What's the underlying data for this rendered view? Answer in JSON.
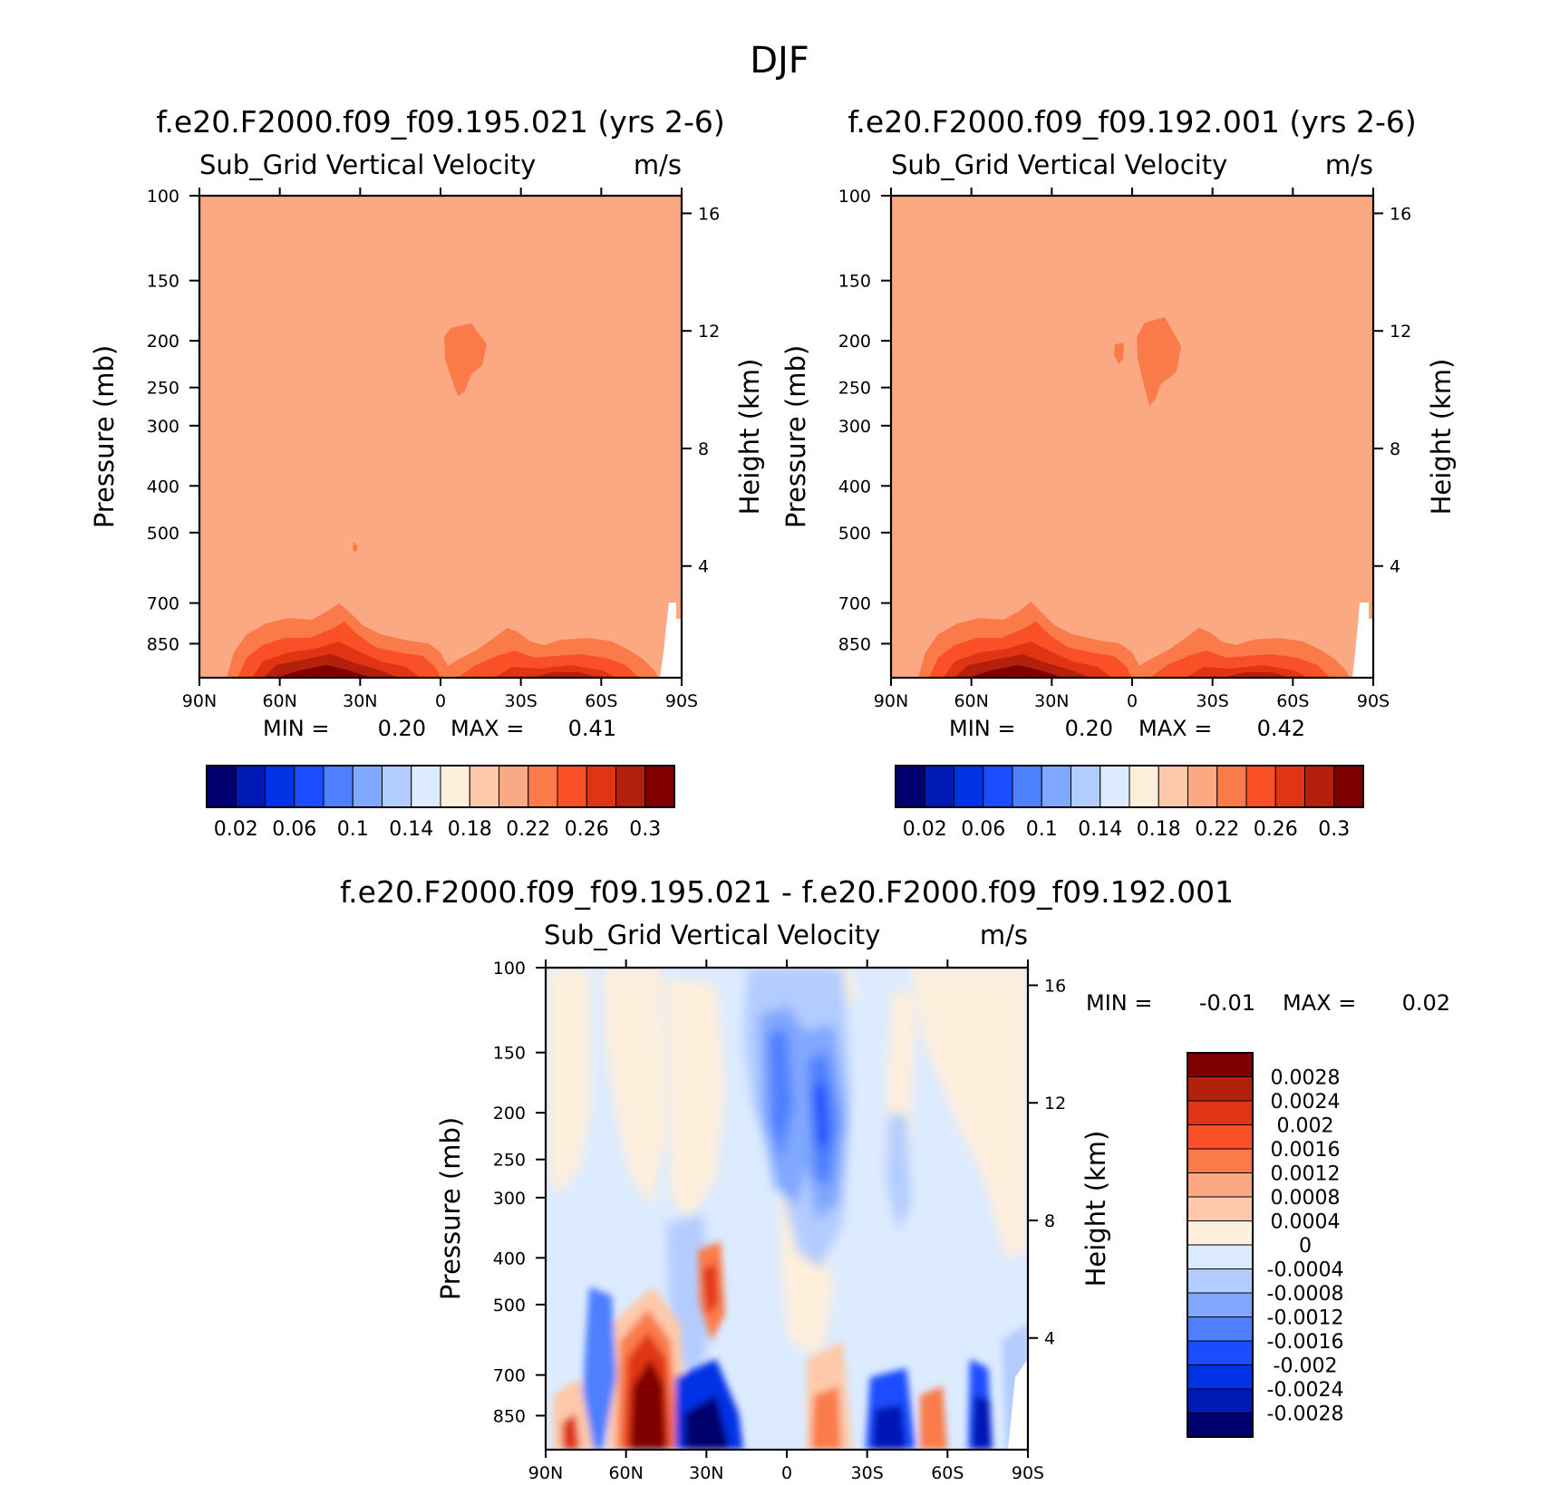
{
  "figure_title": "DJF",
  "chart_data": [
    {
      "type": "heatmap",
      "title": "f.e20.F2000.f09_f09.195.021 (yrs 2-6)",
      "subtitle": "Sub_Grid Vertical Velocity",
      "units": "m/s",
      "xlabel": "",
      "ylabel": "Pressure (mb)",
      "y2label": "Height (km)",
      "x_ticks": [
        "90N",
        "60N",
        "30N",
        "0",
        "30S",
        "60S",
        "90S"
      ],
      "y_ticks": [
        100,
        150,
        200,
        250,
        300,
        400,
        500,
        700,
        850
      ],
      "y_scale": "log",
      "y_range": [
        1000,
        100
      ],
      "y2_ticks": [
        16,
        12,
        8,
        4
      ],
      "min_label": "MIN =",
      "min": "0.20",
      "max_label": "MAX =",
      "max": "0.41",
      "background_level": 0.21,
      "features": [
        {
          "description": "upper-level maximum",
          "lat": -3,
          "pressure": 210,
          "level": 0.23
        },
        {
          "description": "boundary-layer maximum",
          "lat": 38,
          "pressure": 880,
          "level": 0.3
        }
      ],
      "colorbar": {
        "orientation": "horizontal",
        "levels": [
          "0.02",
          "0.06",
          "0.1",
          "0.14",
          "0.18",
          "0.22",
          "0.26",
          "0.3"
        ],
        "colors": [
          "#00006e",
          "#0019b5",
          "#0033e6",
          "#1a4dff",
          "#4d7fff",
          "#80a8ff",
          "#b3ccff",
          "#dcebff",
          "#feeedc",
          "#fdc9aa",
          "#fba982",
          "#fb7a4a",
          "#f95027",
          "#e03414",
          "#b3200b",
          "#800000"
        ]
      }
    },
    {
      "type": "heatmap",
      "title": "f.e20.F2000.f09_f09.192.001 (yrs 2-6)",
      "subtitle": "Sub_Grid Vertical Velocity",
      "units": "m/s",
      "xlabel": "",
      "ylabel": "Pressure (mb)",
      "y2label": "Height (km)",
      "x_ticks": [
        "90N",
        "60N",
        "30N",
        "0",
        "30S",
        "60S",
        "90S"
      ],
      "y_ticks": [
        100,
        150,
        200,
        250,
        300,
        400,
        500,
        700,
        850
      ],
      "y_scale": "log",
      "y_range": [
        1000,
        100
      ],
      "y2_ticks": [
        16,
        12,
        8,
        4
      ],
      "min_label": "MIN =",
      "min": "0.20",
      "max_label": "MAX =",
      "max": "0.42",
      "background_level": 0.21,
      "features": [
        {
          "description": "upper-level maximum",
          "lat": -5,
          "pressure": 210,
          "level": 0.23
        },
        {
          "description": "boundary-layer maximum",
          "lat": 38,
          "pressure": 880,
          "level": 0.3
        }
      ],
      "colorbar": {
        "orientation": "horizontal",
        "levels": [
          "0.02",
          "0.06",
          "0.1",
          "0.14",
          "0.18",
          "0.22",
          "0.26",
          "0.3"
        ],
        "colors": [
          "#00006e",
          "#0019b5",
          "#0033e6",
          "#1a4dff",
          "#4d7fff",
          "#80a8ff",
          "#b3ccff",
          "#dcebff",
          "#feeedc",
          "#fdc9aa",
          "#fba982",
          "#fb7a4a",
          "#f95027",
          "#e03414",
          "#b3200b",
          "#800000"
        ]
      }
    },
    {
      "type": "heatmap",
      "title": "f.e20.F2000.f09_f09.195.021 - f.e20.F2000.f09_f09.192.001",
      "subtitle": "Sub_Grid Vertical Velocity",
      "units": "m/s",
      "xlabel": "",
      "ylabel": "Pressure (mb)",
      "y2label": "Height (km)",
      "x_ticks": [
        "90N",
        "60N",
        "30N",
        "0",
        "30S",
        "60S",
        "90S"
      ],
      "y_ticks": [
        100,
        150,
        200,
        250,
        300,
        400,
        500,
        700,
        850
      ],
      "y_scale": "log",
      "y_range": [
        1000,
        100
      ],
      "y2_ticks": [
        16,
        12,
        8,
        4
      ],
      "min_label": "MIN =",
      "min": "-0.01",
      "max_label": "MAX =",
      "max": "0.02",
      "features": [
        {
          "description": "positive near-surface maximum",
          "lat": 55,
          "pressure": 800,
          "level": 0.0028
        },
        {
          "description": "negative near-surface minimum",
          "lat": 40,
          "pressure": 830,
          "level": -0.0028
        },
        {
          "description": "negative upper-tropospheric band",
          "lat": -10,
          "pressure": 250,
          "level": -0.0016
        }
      ],
      "colorbar": {
        "orientation": "vertical",
        "levels": [
          "0.0028",
          "0.0024",
          "0.002",
          "0.0016",
          "0.0012",
          "0.0008",
          "0.0004",
          "0",
          "-0.0004",
          "-0.0008",
          "-0.0012",
          "-0.0016",
          "-0.002",
          "-0.0024",
          "-0.0028"
        ],
        "colors": [
          "#800000",
          "#b3200b",
          "#e03414",
          "#f95027",
          "#fb7a4a",
          "#fba982",
          "#fdc9aa",
          "#feeedc",
          "#dcebff",
          "#b3ccff",
          "#80a8ff",
          "#4d7fff",
          "#1a4dff",
          "#0033e6",
          "#0019b5",
          "#00006e"
        ]
      }
    }
  ]
}
